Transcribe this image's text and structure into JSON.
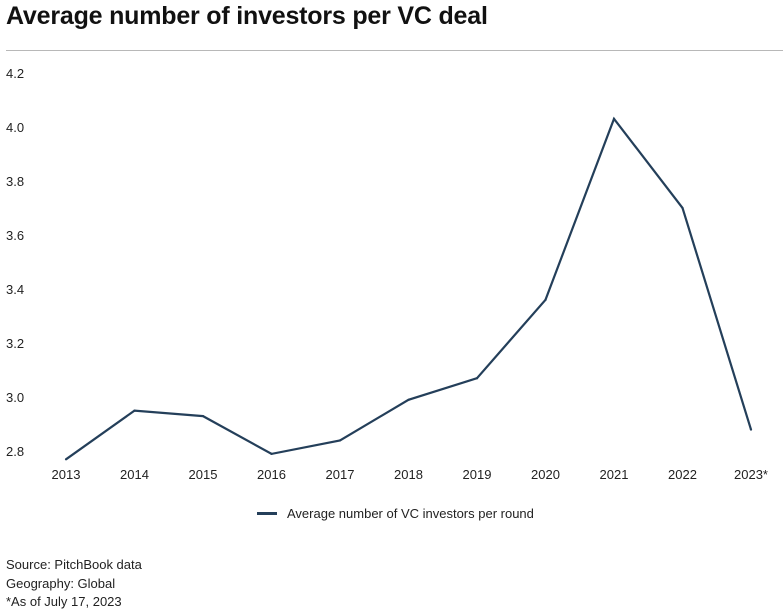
{
  "title": "Average number of investors per VC deal",
  "chart_data": {
    "type": "line",
    "title": "Average number of investors per VC deal",
    "xlabel": "",
    "ylabel": "",
    "categories": [
      "2013",
      "2014",
      "2015",
      "2016",
      "2017",
      "2018",
      "2019",
      "2020",
      "2021",
      "2022",
      "2023*"
    ],
    "series": [
      {
        "name": "Average number of VC investors per round",
        "values": [
          2.77,
          2.95,
          2.93,
          2.79,
          2.84,
          2.99,
          3.07,
          3.36,
          4.03,
          3.7,
          2.88
        ],
        "color": "#243f5a"
      }
    ],
    "y_ticks": [
      "2.8",
      "3.0",
      "3.2",
      "3.4",
      "3.6",
      "3.8",
      "4.0",
      "4.2"
    ],
    "ylim": [
      2.76,
      4.24
    ],
    "grid": false,
    "legend_position": "bottom"
  },
  "legend": {
    "label": "Average number of VC investors per round",
    "color": "#243f5a"
  },
  "footer": {
    "source": "Source: PitchBook data",
    "geography": "Geography: Global",
    "as_of": "*As of July 17, 2023"
  }
}
